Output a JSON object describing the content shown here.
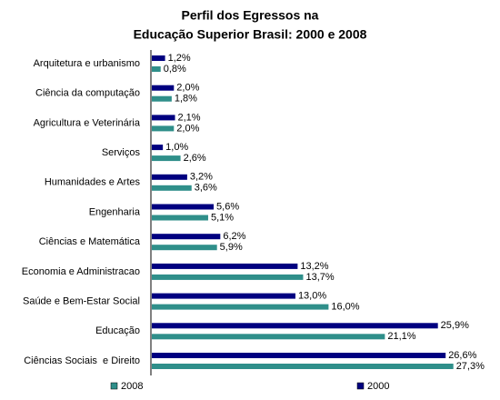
{
  "chart_data": {
    "type": "bar",
    "orientation": "horizontal",
    "title": "Perfil dos Egressos na",
    "subtitle": "Educação Superior Brasil: 2000 e 2008",
    "categories": [
      "Arquitetura e urbanismo",
      "Ciência da computação",
      "Agricultura e Veterinária",
      "Serviços",
      "Humanidades e Artes",
      "Engenharia",
      "Ciências e Matemática",
      "Economia e Administracao",
      "Saúde e Bem-Estar Social",
      "Educação",
      "Ciências Sociais  e Direito"
    ],
    "series": [
      {
        "name": "2000",
        "color": "#000080",
        "values": [
          1.2,
          2.0,
          2.1,
          1.0,
          3.2,
          5.6,
          6.2,
          13.2,
          13.0,
          25.9,
          26.6
        ],
        "value_labels": [
          "1,2%",
          "2,0%",
          "2,1%",
          "1,0%",
          "3,2%",
          "5,6%",
          "6,2%",
          "13,2%",
          "13,0%",
          "25,9%",
          "26,6%"
        ]
      },
      {
        "name": "2008",
        "color": "#2f8f8a",
        "values": [
          0.8,
          1.8,
          2.0,
          2.6,
          3.6,
          5.1,
          5.9,
          13.7,
          16.0,
          21.1,
          27.3
        ],
        "value_labels": [
          "0,8%",
          "1,8%",
          "2,0%",
          "2,6%",
          "3,6%",
          "5,1%",
          "5,9%",
          "13,7%",
          "16,0%",
          "21,1%",
          "27,3%"
        ]
      }
    ]
  }
}
